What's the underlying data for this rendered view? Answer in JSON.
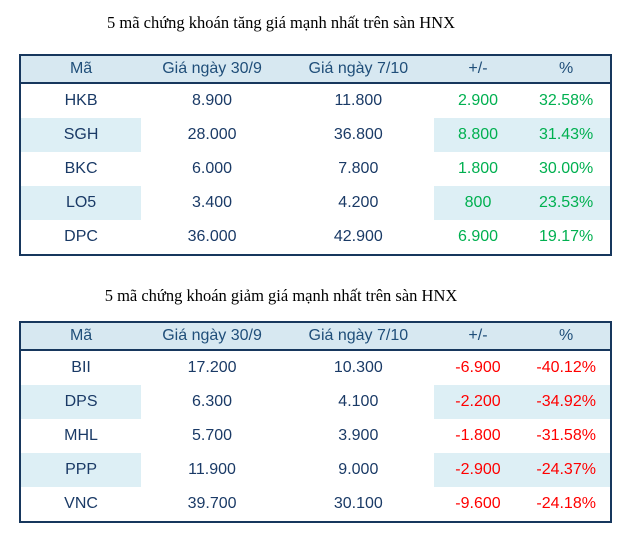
{
  "colors": {
    "header_bg": "#D7E8F1",
    "band_bg": "#DDEFF5",
    "border": "#17375D",
    "header_text": "#1F4E79",
    "body_text": "#1A3A66",
    "up": "#00B050",
    "down": "#FF0000",
    "title_text": "#000000"
  },
  "chart_data": [
    {
      "type": "table",
      "title": "5 mã chứng khoán tăng giá mạnh nhất trên sàn HNX",
      "trend": "up",
      "columns": [
        "Mã",
        "Giá ngày 30/9",
        "Giá ngày 7/10",
        "+/-",
        "%"
      ],
      "rows": [
        [
          "HKB",
          "8.900",
          "11.800",
          "2.900",
          "32.58%"
        ],
        [
          "SGH",
          "28.000",
          "36.800",
          "8.800",
          "31.43%"
        ],
        [
          "BKC",
          "6.000",
          "7.800",
          "1.800",
          "30.00%"
        ],
        [
          "LO5",
          "3.400",
          "4.200",
          "800",
          "23.53%"
        ],
        [
          "DPC",
          "36.000",
          "42.900",
          "6.900",
          "19.17%"
        ]
      ]
    },
    {
      "type": "table",
      "title": "5 mã chứng khoán giảm giá mạnh nhất trên sàn HNX",
      "trend": "down",
      "columns": [
        "Mã",
        "Giá ngày 30/9",
        "Giá ngày 7/10",
        "+/-",
        "%"
      ],
      "rows": [
        [
          "BII",
          "17.200",
          "10.300",
          "-6.900",
          "-40.12%"
        ],
        [
          "DPS",
          "6.300",
          "4.100",
          "-2.200",
          "-34.92%"
        ],
        [
          "MHL",
          "5.700",
          "3.900",
          "-1.800",
          "-31.58%"
        ],
        [
          "PPP",
          "11.900",
          "9.000",
          "-2.900",
          "-24.37%"
        ],
        [
          "VNC",
          "39.700",
          "30.100",
          "-9.600",
          "-24.18%"
        ]
      ]
    }
  ]
}
